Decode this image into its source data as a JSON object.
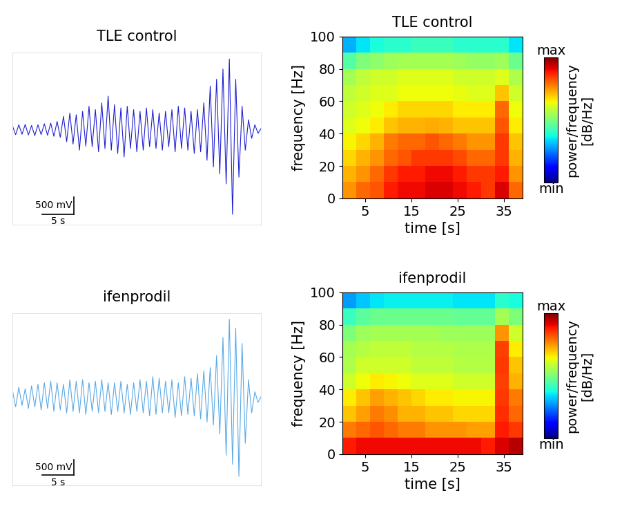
{
  "chart_data": [
    {
      "type": "line",
      "title": "TLE control",
      "color": "#1f1fd0",
      "tick_labels": false,
      "x": [
        0,
        0.5,
        1,
        1.5,
        2,
        2.5,
        3,
        3.5,
        4,
        4.5,
        5,
        5.5,
        6,
        6.5,
        7,
        7.5,
        8,
        8.5,
        9,
        9.5,
        10,
        10.5,
        11,
        11.5,
        12,
        12.5,
        13,
        13.5,
        14,
        14.5,
        15,
        15.5,
        16,
        16.5,
        17,
        17.5,
        18,
        18.5,
        19,
        19.5,
        20,
        20.5,
        21,
        21.5,
        22,
        22.5,
        23,
        23.5,
        24,
        24.5,
        25,
        25.5,
        26,
        26.5,
        27,
        27.5,
        28,
        28.5,
        29,
        29.5,
        30,
        30.5,
        31,
        31.5,
        32,
        32.5,
        33,
        33.5,
        34,
        34.5,
        35,
        35.5,
        36,
        36.5,
        37,
        37.5,
        38,
        38.5,
        39
      ],
      "values": [
        120,
        -140,
        150,
        -130,
        160,
        -150,
        130,
        -170,
        150,
        -140,
        180,
        -160,
        200,
        -190,
        250,
        -220,
        400,
        -350,
        500,
        -420,
        450,
        -600,
        550,
        -480,
        700,
        -500,
        600,
        -650,
        800,
        -550,
        1000,
        -600,
        750,
        -700,
        650,
        -800,
        700,
        -550,
        600,
        -650,
        550,
        -600,
        650,
        -500,
        600,
        -550,
        500,
        -600,
        550,
        -500,
        600,
        -650,
        700,
        -550,
        650,
        -600,
        550,
        -700,
        600,
        -650,
        800,
        -900,
        1300,
        -1100,
        1500,
        -1300,
        1800,
        -1600,
        2100,
        -2500,
        1500,
        -1400,
        700,
        -600,
        300,
        -250,
        150,
        -100,
        50
      ],
      "xlim": [
        0,
        39
      ],
      "ylim": [
        -2800,
        2300
      ],
      "scale_bar": {
        "y": 500,
        "y_label": "500 mV",
        "x": 5,
        "x_label": "5 s"
      }
    },
    {
      "type": "heatmap",
      "title": "TLE control",
      "xlabel": "time [s]",
      "ylabel": "frequency [Hz]",
      "xlim": [
        0,
        39
      ],
      "xticks": [
        5,
        15,
        25,
        35
      ],
      "ylim": [
        0,
        100
      ],
      "yticks": [
        0,
        20,
        40,
        60,
        80,
        100
      ],
      "time_edges": [
        0,
        3,
        6,
        9,
        12,
        15,
        18,
        21,
        24,
        27,
        30,
        33,
        36,
        39
      ],
      "freq_edges": [
        0,
        10,
        20,
        30,
        40,
        50,
        60,
        70,
        80,
        90,
        100
      ],
      "power": [
        [
          0.75,
          0.8,
          0.82,
          0.88,
          0.9,
          0.9,
          0.92,
          0.92,
          0.9,
          0.88,
          0.85,
          0.92,
          0.8
        ],
        [
          0.72,
          0.75,
          0.8,
          0.85,
          0.88,
          0.88,
          0.9,
          0.9,
          0.88,
          0.85,
          0.85,
          0.88,
          0.75
        ],
        [
          0.68,
          0.72,
          0.75,
          0.8,
          0.82,
          0.85,
          0.85,
          0.85,
          0.83,
          0.8,
          0.8,
          0.85,
          0.72
        ],
        [
          0.65,
          0.68,
          0.72,
          0.78,
          0.8,
          0.8,
          0.82,
          0.8,
          0.78,
          0.75,
          0.75,
          0.85,
          0.7
        ],
        [
          0.62,
          0.64,
          0.66,
          0.7,
          0.72,
          0.72,
          0.73,
          0.72,
          0.7,
          0.7,
          0.7,
          0.82,
          0.66
        ],
        [
          0.6,
          0.62,
          0.64,
          0.66,
          0.68,
          0.68,
          0.68,
          0.68,
          0.66,
          0.66,
          0.66,
          0.8,
          0.64
        ],
        [
          0.58,
          0.6,
          0.62,
          0.62,
          0.64,
          0.64,
          0.64,
          0.64,
          0.63,
          0.62,
          0.62,
          0.7,
          0.6
        ],
        [
          0.55,
          0.58,
          0.6,
          0.6,
          0.62,
          0.62,
          0.62,
          0.62,
          0.6,
          0.6,
          0.6,
          0.62,
          0.56
        ],
        [
          0.45,
          0.5,
          0.52,
          0.54,
          0.55,
          0.55,
          0.55,
          0.55,
          0.54,
          0.53,
          0.53,
          0.54,
          0.48
        ],
        [
          0.3,
          0.35,
          0.38,
          0.4,
          0.4,
          0.42,
          0.42,
          0.42,
          0.4,
          0.4,
          0.4,
          0.4,
          0.35
        ]
      ],
      "colorbar": {
        "range": [
          0,
          1
        ],
        "ticks": [
          {
            "value": 1,
            "label": "max"
          },
          {
            "value": 0,
            "label": "min"
          }
        ],
        "label": "power/frequency\n[dB/Hz]"
      }
    },
    {
      "type": "line",
      "title": "ifenprodil",
      "color": "#5aa9e6",
      "tick_labels": false,
      "x": [
        0,
        0.5,
        1,
        1.5,
        2,
        2.5,
        3,
        3.5,
        4,
        4.5,
        5,
        5.5,
        6,
        6.5,
        7,
        7.5,
        8,
        8.5,
        9,
        9.5,
        10,
        10.5,
        11,
        11.5,
        12,
        12.5,
        13,
        13.5,
        14,
        14.5,
        15,
        15.5,
        16,
        16.5,
        17,
        17.5,
        18,
        18.5,
        19,
        19.5,
        20,
        20.5,
        21,
        21.5,
        22,
        22.5,
        23,
        23.5,
        24,
        24.5,
        25,
        25.5,
        26,
        26.5,
        27,
        27.5,
        28,
        28.5,
        29,
        29.5,
        30,
        30.5,
        31,
        31.5,
        32,
        32.5,
        33,
        33.5,
        34,
        34.5,
        35,
        35.5,
        36,
        36.5,
        37,
        37.5,
        38,
        38.5,
        39
      ],
      "values": [
        250,
        -300,
        350,
        -250,
        300,
        -350,
        400,
        -300,
        450,
        -400,
        500,
        -350,
        550,
        -450,
        500,
        -400,
        450,
        -500,
        600,
        -450,
        550,
        -500,
        600,
        -550,
        500,
        -450,
        550,
        -500,
        600,
        -450,
        500,
        -550,
        500,
        -450,
        550,
        -500,
        450,
        -550,
        500,
        -450,
        600,
        -500,
        550,
        -600,
        700,
        -550,
        650,
        -500,
        550,
        -500,
        600,
        -650,
        500,
        -600,
        700,
        -550,
        650,
        -600,
        800,
        -700,
        900,
        -800,
        1000,
        -900,
        1400,
        -1200,
        2000,
        -1900,
        2600,
        -2200,
        2300,
        -2600,
        1800,
        -1500,
        600,
        -500,
        200,
        -150,
        50
      ],
      "xlim": [
        0,
        39
      ],
      "ylim": [
        -2900,
        2800
      ],
      "scale_bar": {
        "y": 500,
        "y_label": "500 mV",
        "x": 5,
        "x_label": "5 s"
      }
    },
    {
      "type": "heatmap",
      "title": "ifenprodil",
      "xlabel": "time [s]",
      "ylabel": "frequency [Hz]",
      "xlim": [
        0,
        39
      ],
      "xticks": [
        5,
        15,
        25,
        35
      ],
      "ylim": [
        0,
        100
      ],
      "yticks": [
        0,
        20,
        40,
        60,
        80,
        100
      ],
      "time_edges": [
        0,
        3,
        6,
        9,
        12,
        15,
        18,
        21,
        24,
        27,
        30,
        33,
        36,
        39
      ],
      "freq_edges": [
        0,
        10,
        20,
        30,
        40,
        50,
        60,
        70,
        80,
        90,
        100
      ],
      "power": [
        [
          0.88,
          0.9,
          0.9,
          0.9,
          0.9,
          0.9,
          0.9,
          0.9,
          0.9,
          0.9,
          0.88,
          0.92,
          0.95
        ],
        [
          0.78,
          0.8,
          0.82,
          0.8,
          0.78,
          0.78,
          0.75,
          0.75,
          0.75,
          0.74,
          0.74,
          0.88,
          0.85
        ],
        [
          0.7,
          0.74,
          0.78,
          0.76,
          0.72,
          0.72,
          0.7,
          0.7,
          0.68,
          0.68,
          0.68,
          0.86,
          0.8
        ],
        [
          0.66,
          0.7,
          0.74,
          0.72,
          0.7,
          0.68,
          0.66,
          0.66,
          0.65,
          0.65,
          0.65,
          0.85,
          0.78
        ],
        [
          0.6,
          0.64,
          0.66,
          0.65,
          0.64,
          0.62,
          0.62,
          0.62,
          0.6,
          0.6,
          0.6,
          0.84,
          0.72
        ],
        [
          0.56,
          0.6,
          0.6,
          0.6,
          0.6,
          0.58,
          0.58,
          0.58,
          0.57,
          0.57,
          0.57,
          0.85,
          0.7
        ],
        [
          0.55,
          0.57,
          0.58,
          0.58,
          0.58,
          0.57,
          0.57,
          0.57,
          0.56,
          0.56,
          0.56,
          0.84,
          0.66
        ],
        [
          0.5,
          0.54,
          0.55,
          0.55,
          0.55,
          0.55,
          0.55,
          0.54,
          0.54,
          0.54,
          0.54,
          0.75,
          0.6
        ],
        [
          0.42,
          0.46,
          0.48,
          0.48,
          0.48,
          0.48,
          0.48,
          0.48,
          0.47,
          0.47,
          0.47,
          0.55,
          0.5
        ],
        [
          0.28,
          0.32,
          0.35,
          0.36,
          0.36,
          0.36,
          0.36,
          0.36,
          0.35,
          0.35,
          0.35,
          0.4,
          0.38
        ]
      ],
      "colorbar": {
        "range": [
          0,
          1
        ],
        "ticks": [
          {
            "value": 1,
            "label": "max"
          },
          {
            "value": 0,
            "label": "min"
          }
        ],
        "label": "power/frequency\n[dB/Hz]"
      }
    }
  ]
}
